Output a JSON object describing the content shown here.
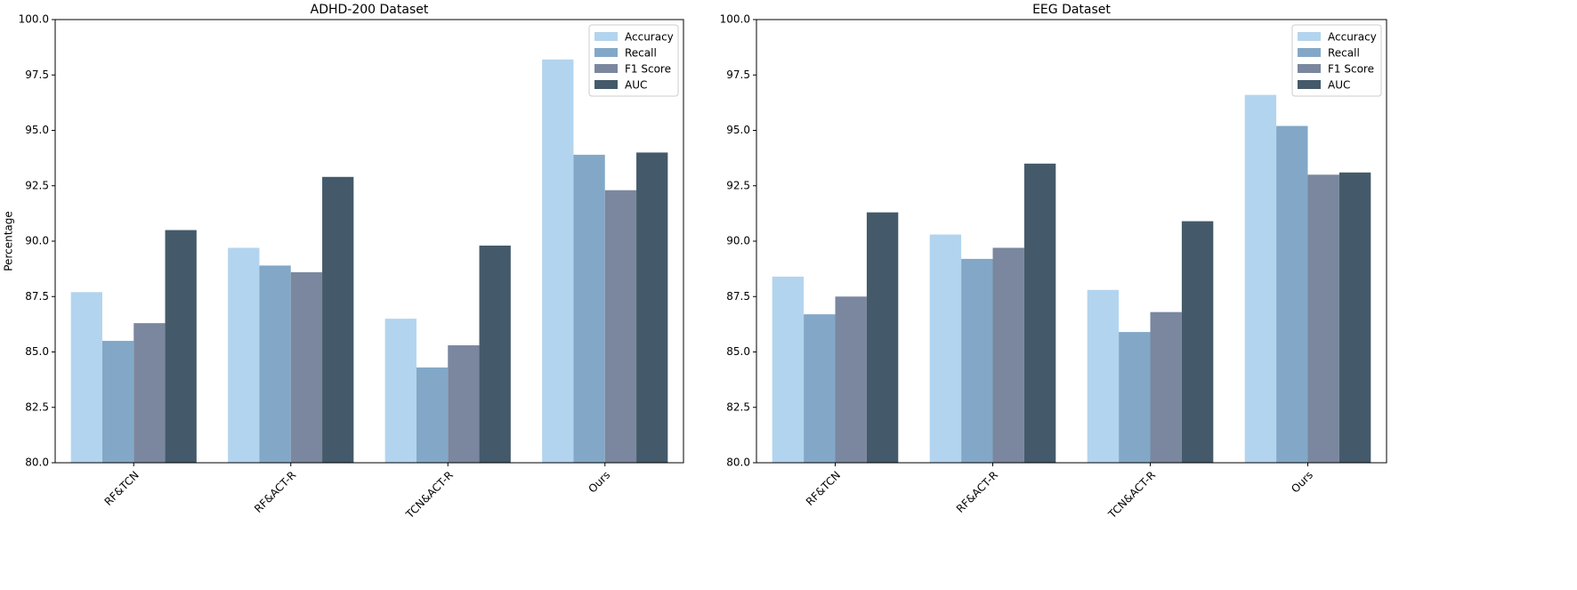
{
  "chart_data": [
    {
      "type": "bar",
      "title": "ADHD-200 Dataset",
      "ylabel": "Percentage",
      "categories": [
        "RF&TCN",
        "RF&ACT-R",
        "TCN&ACT-R",
        "Ours"
      ],
      "series": [
        {
          "name": "Accuracy",
          "color": "#b3d4ee",
          "values": [
            87.7,
            89.7,
            86.5,
            98.2
          ]
        },
        {
          "name": "Recall",
          "color": "#83a8c7",
          "values": [
            85.5,
            88.9,
            84.3,
            93.9
          ]
        },
        {
          "name": "F1 Score",
          "color": "#7a879f",
          "values": [
            86.3,
            88.6,
            85.3,
            92.3
          ]
        },
        {
          "name": "AUC",
          "color": "#445a6a",
          "values": [
            90.5,
            92.9,
            89.8,
            94.0
          ]
        }
      ],
      "ylim": [
        80,
        100
      ],
      "yticks": [
        {
          "value": 80,
          "label": "80.0"
        },
        82.5,
        {
          "value": 85,
          "label": "85.0"
        },
        87.5,
        {
          "value": 90,
          "label": "90.0"
        },
        92.5,
        {
          "value": 95,
          "label": "95.0"
        },
        97.5,
        {
          "value": 100,
          "label": "100.0"
        }
      ],
      "legend": "upper right"
    },
    {
      "type": "bar",
      "title": "EEG Dataset",
      "categories": [
        "RF&TCN",
        "RF&ACT-R",
        "TCN&ACT-R",
        "Ours"
      ],
      "series": [
        {
          "name": "Accuracy",
          "color": "#b3d4ee",
          "values": [
            88.4,
            90.3,
            87.8,
            96.6
          ]
        },
        {
          "name": "Recall",
          "color": "#83a8c7",
          "values": [
            86.7,
            89.2,
            85.9,
            95.2
          ]
        },
        {
          "name": "F1 Score",
          "color": "#7a879f",
          "values": [
            87.5,
            89.7,
            86.8,
            93.0
          ]
        },
        {
          "name": "AUC",
          "color": "#445a6a",
          "values": [
            91.3,
            93.5,
            90.9,
            93.1
          ]
        }
      ],
      "ylim": [
        80,
        100
      ],
      "yticks": [
        {
          "value": 80,
          "label": "80.0"
        },
        82.5,
        {
          "value": 85,
          "label": "85.0"
        },
        87.5,
        {
          "value": 90,
          "label": "90.0"
        },
        92.5,
        {
          "value": 95,
          "label": "95.0"
        },
        97.5,
        {
          "value": 100,
          "label": "100.0"
        }
      ],
      "legend": "upper right"
    }
  ]
}
